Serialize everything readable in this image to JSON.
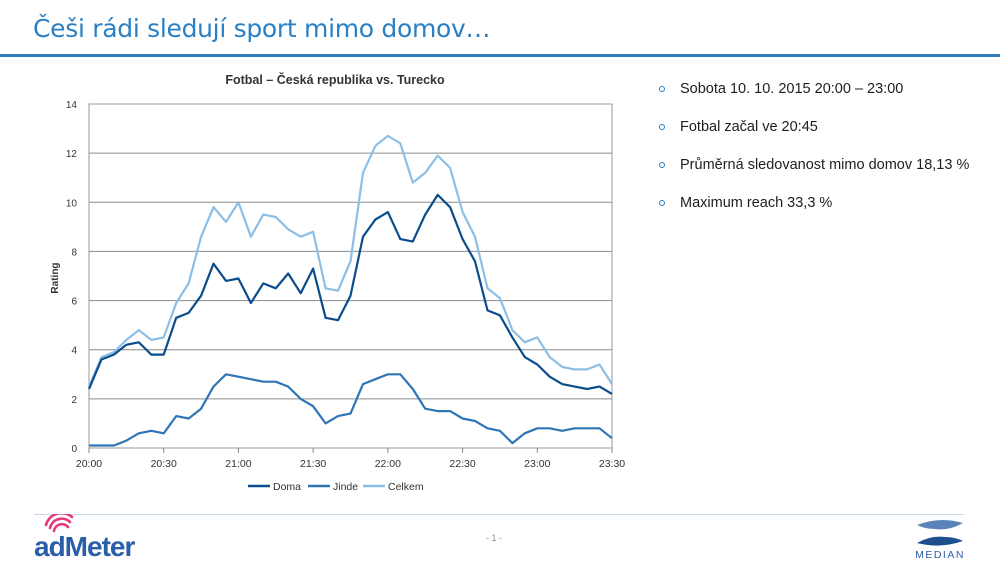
{
  "slide": {
    "title": "Češi rádi sledují sport mimo domov…",
    "page_number": "- 1 -"
  },
  "bullets": [
    "Sobota 10. 10. 2015 20:00 – 23:00",
    "Fotbal začal ve 20:45",
    "Průměrná sledovanost mimo domov 18,13 %",
    "Maximum reach 33,3 %"
  ],
  "logos": {
    "left": "adMeter",
    "right": "MEDIAN"
  },
  "colors": {
    "title": "#2a80c4",
    "rule": "#2b7fc3",
    "doma": "#0b4c8c",
    "jinde": "#2e75b6",
    "celkem": "#8cbfe6"
  },
  "chart_data": {
    "type": "line",
    "title": "Fotbal – Česká republika vs. Turecko",
    "xlabel": "",
    "ylabel": "Rating",
    "ylim": [
      0,
      14
    ],
    "yticks": [
      0,
      2,
      4,
      6,
      8,
      10,
      12,
      14
    ],
    "xlim_minutes": [
      0,
      210
    ],
    "xticks": [
      "20:00",
      "20:30",
      "21:00",
      "21:30",
      "22:00",
      "22:30",
      "23:00",
      "23:30"
    ],
    "grid": true,
    "legend_position": "bottom",
    "x": [
      "20:00",
      "20:05",
      "20:10",
      "20:15",
      "20:20",
      "20:25",
      "20:30",
      "20:35",
      "20:40",
      "20:45",
      "20:50",
      "20:55",
      "21:00",
      "21:05",
      "21:10",
      "21:15",
      "21:20",
      "21:25",
      "21:30",
      "21:35",
      "21:40",
      "21:45",
      "21:50",
      "21:55",
      "22:00",
      "22:05",
      "22:10",
      "22:15",
      "22:20",
      "22:25",
      "22:30",
      "22:35",
      "22:40",
      "22:45",
      "22:50",
      "22:55",
      "23:00",
      "23:05",
      "23:10",
      "23:15",
      "23:20",
      "23:25",
      "23:30"
    ],
    "series": [
      {
        "name": "Doma",
        "color": "#0b4c8c",
        "values": [
          2.4,
          3.6,
          3.8,
          4.2,
          4.3,
          3.8,
          3.8,
          5.3,
          5.5,
          6.2,
          7.5,
          6.8,
          6.9,
          5.9,
          6.7,
          6.5,
          7.1,
          6.3,
          7.3,
          5.3,
          5.2,
          6.2,
          8.6,
          9.3,
          9.6,
          8.5,
          8.4,
          9.5,
          10.3,
          9.8,
          8.5,
          7.6,
          5.6,
          5.4,
          4.5,
          3.7,
          3.4,
          2.9,
          2.6,
          2.5,
          2.4,
          2.5,
          2.2
        ]
      },
      {
        "name": "Jinde",
        "color": "#2e75b6",
        "values": [
          0.1,
          0.1,
          0.1,
          0.3,
          0.6,
          0.7,
          0.6,
          1.3,
          1.2,
          1.6,
          2.5,
          3.0,
          2.9,
          2.8,
          2.7,
          2.7,
          2.5,
          2.0,
          1.7,
          1.0,
          1.3,
          1.4,
          2.6,
          2.8,
          3.0,
          3.0,
          2.4,
          1.6,
          1.5,
          1.5,
          1.2,
          1.1,
          0.8,
          0.7,
          0.2,
          0.6,
          0.8,
          0.8,
          0.7,
          0.8,
          0.8,
          0.8,
          0.4
        ]
      },
      {
        "name": "Celkem",
        "color": "#8cbfe6",
        "values": [
          2.5,
          3.7,
          3.9,
          4.4,
          4.8,
          4.4,
          4.5,
          5.9,
          6.7,
          8.6,
          9.8,
          9.2,
          10.0,
          8.6,
          9.5,
          9.4,
          8.9,
          8.6,
          8.8,
          6.5,
          6.4,
          7.6,
          11.2,
          12.3,
          12.7,
          12.4,
          10.8,
          11.2,
          11.9,
          11.4,
          9.6,
          8.6,
          6.5,
          6.1,
          4.8,
          4.3,
          4.5,
          3.7,
          3.3,
          3.2,
          3.2,
          3.4,
          2.6
        ]
      }
    ]
  }
}
